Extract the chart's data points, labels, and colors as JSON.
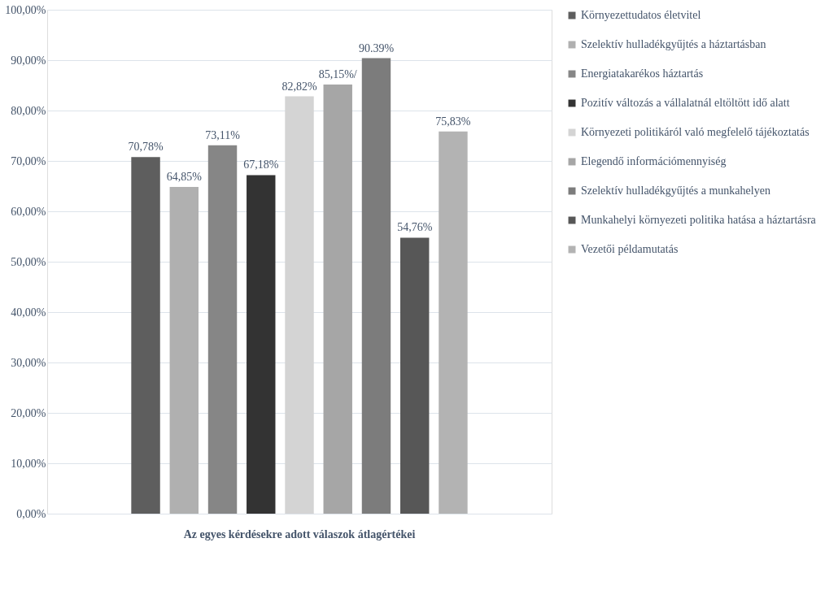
{
  "chart_data": {
    "type": "bar",
    "categories": [
      "Az egyes kérdésekre adott válaszok átlagértékei"
    ],
    "series": [
      {
        "name": "Környezettudatos életvitel",
        "color": "#5e5e5e",
        "values": [
          70.78
        ],
        "value_labels": [
          "70,78%"
        ]
      },
      {
        "name": "Szelektív hulladékgyűjtés a háztartásban",
        "color": "#b0b0b0",
        "values": [
          64.85
        ],
        "value_labels": [
          "64,85%"
        ]
      },
      {
        "name": "Energiatakarékos háztartás",
        "color": "#868686",
        "values": [
          73.11
        ],
        "value_labels": [
          "73,11%"
        ]
      },
      {
        "name": "Pozitív változás a vállalatnál eltöltött idő alatt",
        "color": "#333333",
        "values": [
          67.18
        ],
        "value_labels": [
          "67,18%"
        ]
      },
      {
        "name": "Környezeti politikáról való megfelelő tájékoztatás",
        "color": "#d4d4d4",
        "values": [
          82.82
        ],
        "value_labels": [
          "82,82%"
        ]
      },
      {
        "name": "Elegendő információmennyiség",
        "color": "#a6a6a6",
        "values": [
          85.15
        ],
        "value_labels": [
          "85,15%/"
        ]
      },
      {
        "name": "Szelektív hulladékgyűjtés a munkahelyen",
        "color": "#7c7c7c",
        "values": [
          90.39
        ],
        "value_labels": [
          "90.39%"
        ]
      },
      {
        "name": "Munkahelyi környezeti politika hatása a háztartásra",
        "color": "#575757",
        "values": [
          54.76
        ],
        "value_labels": [
          "54,76%"
        ]
      },
      {
        "name": "Vezetői példamutatás",
        "color": "#b3b3b3",
        "values": [
          75.83
        ],
        "value_labels": [
          "75,83%"
        ]
      }
    ],
    "ylim": [
      0,
      100
    ],
    "yticks": [
      {
        "value": 0,
        "label": "0,00%"
      },
      {
        "value": 10,
        "label": "10,00%"
      },
      {
        "value": 20,
        "label": "20,00%"
      },
      {
        "value": 30,
        "label": "30,00%"
      },
      {
        "value": 40,
        "label": "40,00%"
      },
      {
        "value": 50,
        "label": "50,00%"
      },
      {
        "value": 60,
        "label": "60,00%"
      },
      {
        "value": 70,
        "label": "70,00%"
      },
      {
        "value": 80,
        "label": "80,00%"
      },
      {
        "value": 90,
        "label": "90,00%"
      },
      {
        "value": 100,
        "label": "100,00%"
      }
    ],
    "grid": "y",
    "legend": "right"
  }
}
